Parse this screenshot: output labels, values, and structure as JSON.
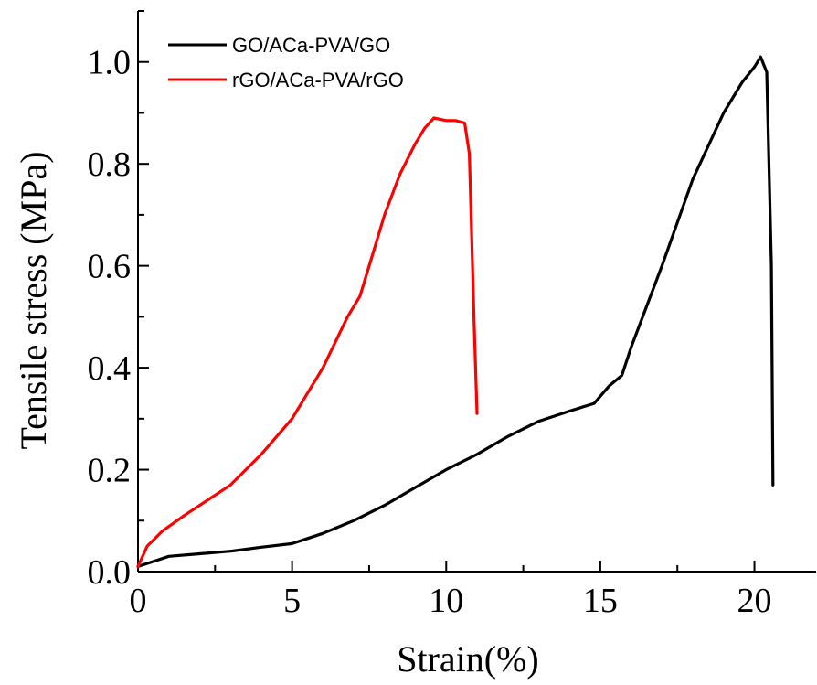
{
  "chart_data": {
    "type": "line",
    "title": "",
    "xlabel": "Strain(%)",
    "ylabel": "Tensile stress (MPa)",
    "xlim": [
      0,
      22
    ],
    "ylim": [
      0,
      1.1
    ],
    "x_ticks": [
      0,
      5,
      10,
      15,
      20
    ],
    "x_tick_labels": [
      "0",
      "5",
      "10",
      "15",
      "20"
    ],
    "y_ticks": [
      0.0,
      0.2,
      0.4,
      0.6,
      0.8,
      1.0
    ],
    "y_tick_labels": [
      "0.0",
      "0.2",
      "0.4",
      "0.6",
      "0.8",
      "1.0"
    ],
    "grid": false,
    "legend_position": "top-left",
    "series": [
      {
        "name": "GO/ACa-PVA/GO",
        "color": "#000000",
        "x": [
          0.0,
          0.5,
          1.0,
          2.0,
          3.0,
          4.0,
          5.0,
          5.5,
          6.0,
          7.0,
          8.0,
          9.0,
          10.0,
          11.0,
          12.0,
          13.0,
          14.0,
          14.8,
          15.3,
          15.7,
          16.0,
          17.0,
          18.0,
          19.0,
          19.6,
          20.0,
          20.2,
          20.4,
          20.55,
          20.6
        ],
        "y": [
          0.01,
          0.02,
          0.03,
          0.035,
          0.04,
          0.048,
          0.055,
          0.065,
          0.075,
          0.1,
          0.13,
          0.165,
          0.2,
          0.23,
          0.265,
          0.295,
          0.315,
          0.33,
          0.365,
          0.385,
          0.44,
          0.6,
          0.77,
          0.9,
          0.96,
          0.99,
          1.01,
          0.98,
          0.6,
          0.17
        ]
      },
      {
        "name": "rGO/ACa-PVA/rGO",
        "color": "#ff0000",
        "x": [
          0.0,
          0.3,
          0.8,
          1.5,
          2.0,
          3.0,
          4.0,
          5.0,
          6.0,
          6.8,
          7.2,
          7.5,
          8.0,
          8.5,
          9.0,
          9.3,
          9.6,
          10.0,
          10.3,
          10.6,
          10.75,
          10.9,
          11.0
        ],
        "y": [
          0.01,
          0.05,
          0.08,
          0.11,
          0.13,
          0.17,
          0.23,
          0.3,
          0.4,
          0.5,
          0.54,
          0.6,
          0.7,
          0.78,
          0.84,
          0.87,
          0.89,
          0.885,
          0.885,
          0.88,
          0.82,
          0.5,
          0.31
        ]
      }
    ]
  }
}
